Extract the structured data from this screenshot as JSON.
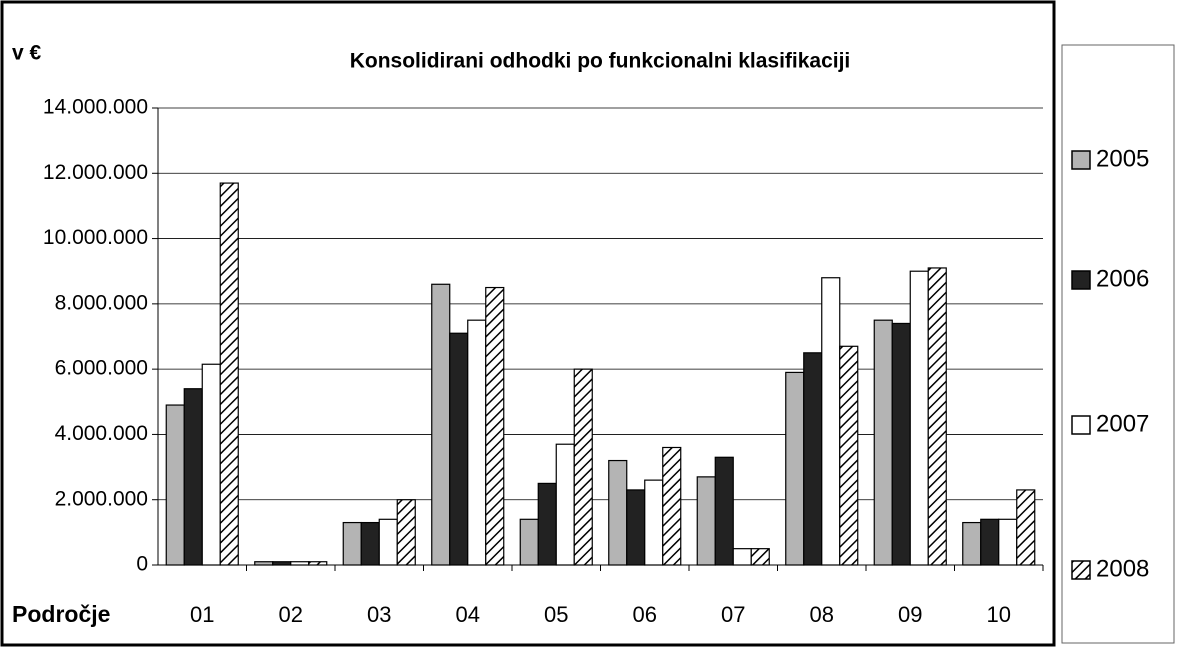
{
  "chart_data": {
    "type": "bar",
    "title": "Konsolidirani odhodki po funkcionalni klasifikaciji",
    "y_label": "v €",
    "x_label": "Področje",
    "categories": [
      "01",
      "02",
      "03",
      "04",
      "05",
      "06",
      "07",
      "08",
      "09",
      "10"
    ],
    "series": [
      {
        "name": "2005",
        "color": "#b4b4b4",
        "values": [
          4900000,
          100000,
          1300000,
          8600000,
          1400000,
          3200000,
          2700000,
          5900000,
          7500000,
          1300000
        ]
      },
      {
        "name": "2006",
        "color": "#222222",
        "values": [
          5400000,
          100000,
          1300000,
          7100000,
          2500000,
          2300000,
          3300000,
          6500000,
          7400000,
          1400000
        ]
      },
      {
        "name": "2007",
        "color": "#ffffff",
        "values": [
          6150000,
          100000,
          1400000,
          7500000,
          3700000,
          2600000,
          500000,
          8800000,
          9000000,
          1400000
        ]
      },
      {
        "name": "2008",
        "color": "#ffffff",
        "pattern": "diagonal",
        "values": [
          11700000,
          100000,
          2000000,
          8500000,
          6000000,
          3600000,
          500000,
          6700000,
          9100000,
          2300000
        ]
      }
    ],
    "ylim": [
      0,
      14000000
    ],
    "yticks": [
      0,
      {
        "value": 2000000,
        "label": "2.000.000"
      },
      {
        "value": 4000000,
        "label": "4.000.000"
      },
      {
        "value": 6000000,
        "label": "6.000.000"
      },
      {
        "value": 8000000,
        "label": "8.000.000"
      },
      {
        "value": 10000000,
        "label": "10.000.000"
      },
      {
        "value": 12000000,
        "label": "12.000.000"
      },
      {
        "value": 14000000,
        "label": "14.000.000"
      }
    ],
    "grid": true,
    "legend": "right"
  }
}
